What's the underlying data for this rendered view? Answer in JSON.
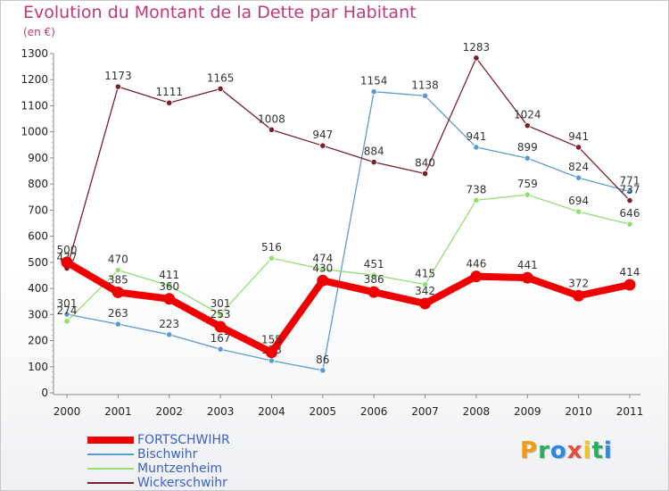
{
  "header": {
    "title": "Evolution du Montant de la Dette par Habitant",
    "subtitle": "(en €)"
  },
  "logo": {
    "letters": [
      "P",
      "r",
      "o",
      "x",
      "i",
      "t",
      "i"
    ],
    "colors": [
      "#f39c12",
      "#27ae60",
      "#2e86de",
      "#e74c3c",
      "#f1c40f",
      "#27ae60",
      "#2e86de"
    ]
  },
  "chart_data": {
    "type": "line",
    "title": "Evolution du Montant de la Dette par Habitant",
    "subtitle": "(en €)",
    "xlabel": "",
    "ylabel": "",
    "ylim": [
      0,
      1300
    ],
    "yticks": [
      0,
      100,
      200,
      300,
      400,
      500,
      600,
      700,
      800,
      900,
      1000,
      1100,
      1200,
      1300
    ],
    "categories": [
      "2000",
      "2001",
      "2002",
      "2003",
      "2004",
      "2005",
      "2006",
      "2007",
      "2008",
      "2009",
      "2010",
      "2011"
    ],
    "grid": false,
    "legend_position": "bottom-left",
    "series": [
      {
        "name": "FORTSCHWIHR",
        "color": "#ee0000",
        "emphasis": true,
        "values": [
          500,
          385,
          360,
          253,
          155,
          430,
          386,
          342,
          446,
          441,
          372,
          414
        ]
      },
      {
        "name": "Bischwihr",
        "color": "#5a9bd4",
        "values": [
          301,
          263,
          223,
          167,
          123,
          86,
          1154,
          1138,
          941,
          899,
          824,
          771
        ]
      },
      {
        "name": "Muntzenheim",
        "color": "#90e070",
        "values": [
          274,
          470,
          411,
          301,
          516,
          474,
          451,
          415,
          738,
          759,
          694,
          646
        ]
      },
      {
        "name": "Wickerschwihr",
        "color": "#7a1f2b",
        "values": [
          477,
          1173,
          1111,
          1165,
          1008,
          947,
          884,
          840,
          1283,
          1024,
          941,
          737
        ]
      }
    ]
  }
}
